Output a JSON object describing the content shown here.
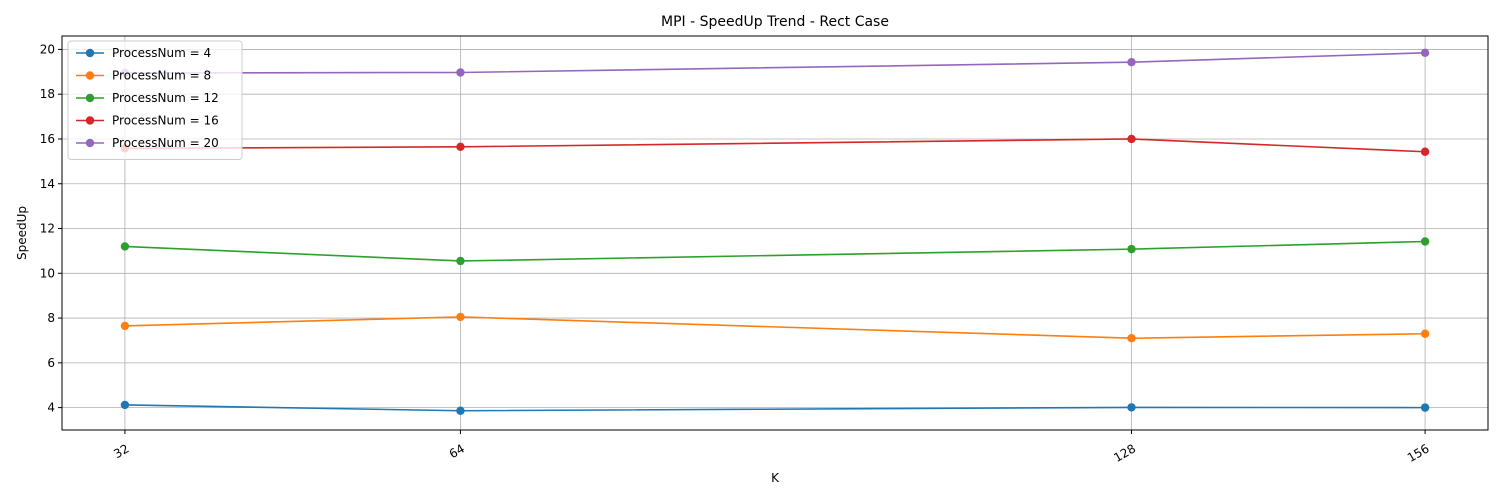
{
  "chart_data": {
    "type": "line",
    "title": "MPI - SpeedUp Trend - Rect Case",
    "xlabel": "K",
    "ylabel": "SpeedUp",
    "x": [
      32,
      64,
      128,
      156
    ],
    "x_tick_labels": [
      "32",
      "64",
      "128",
      "156"
    ],
    "y_ticks": [
      4,
      6,
      8,
      10,
      12,
      14,
      16,
      18,
      20
    ],
    "ylim": [
      3.0,
      20.6
    ],
    "xlim": [
      26,
      162
    ],
    "grid": true,
    "legend_position": "top-left",
    "series": [
      {
        "name": "ProcessNum = 4",
        "color": "#1f77b4",
        "values": [
          4.12,
          3.86,
          4.01,
          4.0
        ]
      },
      {
        "name": "ProcessNum = 8",
        "color": "#ff7f0e",
        "values": [
          7.65,
          8.05,
          7.1,
          7.3
        ]
      },
      {
        "name": "ProcessNum = 12",
        "color": "#2ca02c",
        "values": [
          11.2,
          10.55,
          11.08,
          11.42
        ]
      },
      {
        "name": "ProcessNum = 16",
        "color": "#d62728",
        "values": [
          15.58,
          15.65,
          16.0,
          15.43
        ]
      },
      {
        "name": "ProcessNum = 20",
        "color": "#9467bd",
        "values": [
          18.95,
          18.97,
          19.43,
          19.85
        ]
      }
    ]
  }
}
